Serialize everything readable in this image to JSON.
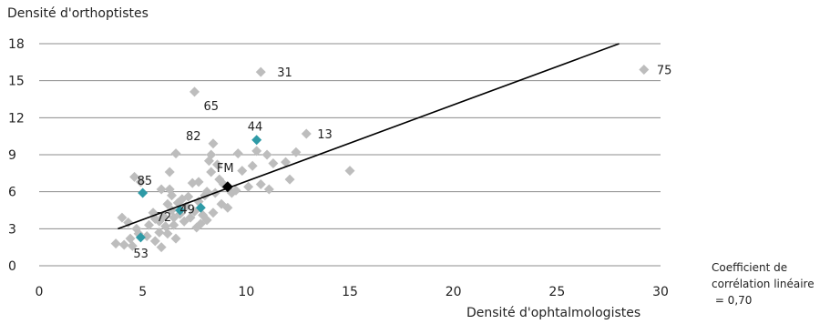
{
  "chart_data": {
    "type": "scatter",
    "title": "",
    "ylabel": "Densité d'orthoptistes",
    "xlabel": "Densité d'ophtalmologistes",
    "xlim": [
      0,
      30
    ],
    "ylim": [
      0,
      18
    ],
    "xticks": [
      0,
      5,
      10,
      15,
      20,
      25,
      30
    ],
    "yticks": [
      0,
      3,
      6,
      9,
      12,
      15,
      18
    ],
    "grid": "horizontal",
    "colors": {
      "base": "#bdbdbd",
      "highlight": "#2e9aa6",
      "fm": "#000000",
      "trend": "#000000",
      "grid": "#8c8c8c"
    },
    "trendline": {
      "x": [
        3.8,
        28.0
      ],
      "y": [
        3.0,
        18.0
      ]
    },
    "note": [
      "Coefficient de",
      "corrélation linéaire",
      " = 0,70"
    ],
    "points": [
      {
        "x": 3.7,
        "y": 1.8
      },
      {
        "x": 4.0,
        "y": 3.9
      },
      {
        "x": 4.1,
        "y": 1.7
      },
      {
        "x": 4.3,
        "y": 3.5
      },
      {
        "x": 4.4,
        "y": 2.2
      },
      {
        "x": 4.5,
        "y": 1.6
      },
      {
        "x": 4.6,
        "y": 7.2
      },
      {
        "x": 4.7,
        "y": 3.0
      },
      {
        "x": 4.8,
        "y": 2.6
      },
      {
        "x": 4.9,
        "y": 6.8
      },
      {
        "x": 5.2,
        "y": 2.4
      },
      {
        "x": 5.3,
        "y": 3.3
      },
      {
        "x": 5.5,
        "y": 4.3
      },
      {
        "x": 5.6,
        "y": 3.8
      },
      {
        "x": 5.6,
        "y": 2.0
      },
      {
        "x": 5.8,
        "y": 3.6
      },
      {
        "x": 5.8,
        "y": 2.7
      },
      {
        "x": 5.9,
        "y": 1.5
      },
      {
        "x": 5.9,
        "y": 6.2
      },
      {
        "x": 6.0,
        "y": 4.0
      },
      {
        "x": 6.1,
        "y": 3.2
      },
      {
        "x": 6.2,
        "y": 2.6
      },
      {
        "x": 6.2,
        "y": 5.0
      },
      {
        "x": 6.3,
        "y": 7.6
      },
      {
        "x": 6.3,
        "y": 6.2
      },
      {
        "x": 6.4,
        "y": 5.7
      },
      {
        "x": 6.4,
        "y": 4.5
      },
      {
        "x": 6.5,
        "y": 3.9
      },
      {
        "x": 6.5,
        "y": 3.3
      },
      {
        "x": 6.6,
        "y": 2.2
      },
      {
        "x": 6.6,
        "y": 9.1
      },
      {
        "x": 6.7,
        "y": 5.1
      },
      {
        "x": 6.8,
        "y": 4.2
      },
      {
        "x": 6.9,
        "y": 5.4
      },
      {
        "x": 7.0,
        "y": 3.6
      },
      {
        "x": 7.1,
        "y": 4.8
      },
      {
        "x": 7.2,
        "y": 5.6
      },
      {
        "x": 7.3,
        "y": 3.9
      },
      {
        "x": 7.4,
        "y": 6.7
      },
      {
        "x": 7.5,
        "y": 4.4
      },
      {
        "x": 7.5,
        "y": 14.1
      },
      {
        "x": 7.6,
        "y": 3.1
      },
      {
        "x": 7.7,
        "y": 5.2
      },
      {
        "x": 7.7,
        "y": 6.8
      },
      {
        "x": 7.8,
        "y": 3.4
      },
      {
        "x": 7.9,
        "y": 4.1
      },
      {
        "x": 8.0,
        "y": 5.7
      },
      {
        "x": 8.1,
        "y": 3.7
      },
      {
        "x": 8.1,
        "y": 6.0
      },
      {
        "x": 8.2,
        "y": 8.5
      },
      {
        "x": 8.3,
        "y": 7.6
      },
      {
        "x": 8.3,
        "y": 9.0
      },
      {
        "x": 8.4,
        "y": 9.9
      },
      {
        "x": 8.4,
        "y": 4.3
      },
      {
        "x": 8.5,
        "y": 5.9
      },
      {
        "x": 8.6,
        "y": 8.2
      },
      {
        "x": 8.7,
        "y": 7.0
      },
      {
        "x": 8.8,
        "y": 5.0
      },
      {
        "x": 8.9,
        "y": 6.6
      },
      {
        "x": 9.1,
        "y": 4.7
      },
      {
        "x": 9.3,
        "y": 5.9
      },
      {
        "x": 9.5,
        "y": 6.1
      },
      {
        "x": 9.6,
        "y": 9.1
      },
      {
        "x": 9.8,
        "y": 7.7
      },
      {
        "x": 10.1,
        "y": 6.4
      },
      {
        "x": 10.3,
        "y": 8.1
      },
      {
        "x": 10.5,
        "y": 9.3
      },
      {
        "x": 10.7,
        "y": 6.6
      },
      {
        "x": 10.7,
        "y": 15.7
      },
      {
        "x": 11.0,
        "y": 9.0
      },
      {
        "x": 11.1,
        "y": 6.2
      },
      {
        "x": 11.3,
        "y": 8.3
      },
      {
        "x": 11.9,
        "y": 8.4
      },
      {
        "x": 12.1,
        "y": 7.0
      },
      {
        "x": 12.4,
        "y": 9.2
      },
      {
        "x": 12.9,
        "y": 10.7
      },
      {
        "x": 15.0,
        "y": 7.7
      },
      {
        "x": 29.2,
        "y": 15.9
      }
    ],
    "highlighted": [
      {
        "label": "44",
        "x": 10.5,
        "y": 10.2
      },
      {
        "label": "85",
        "x": 5.0,
        "y": 5.9
      },
      {
        "label": "72",
        "x": 6.8,
        "y": 4.5
      },
      {
        "label": "49",
        "x": 7.8,
        "y": 4.7
      },
      {
        "label": "53",
        "x": 4.9,
        "y": 2.3
      }
    ],
    "fm_point": {
      "label": "FM",
      "x": 9.1,
      "y": 6.4
    },
    "point_labels": [
      {
        "text": "31",
        "x": 10.7,
        "y": 15.7
      },
      {
        "text": "75",
        "x": 29.2,
        "y": 15.9
      },
      {
        "text": "65",
        "x": 7.5,
        "y": 14.1
      },
      {
        "text": "13",
        "x": 12.9,
        "y": 10.7
      },
      {
        "text": "82",
        "x": 8.4,
        "y": 9.9
      },
      {
        "text": "44",
        "x": 10.5,
        "y": 10.2
      },
      {
        "text": "FM",
        "x": 9.1,
        "y": 6.4
      },
      {
        "text": "85",
        "x": 5.0,
        "y": 5.9
      },
      {
        "text": "72",
        "x": 6.8,
        "y": 4.5
      },
      {
        "text": "49",
        "x": 7.8,
        "y": 4.7
      },
      {
        "text": "53",
        "x": 4.9,
        "y": 2.3
      }
    ]
  }
}
